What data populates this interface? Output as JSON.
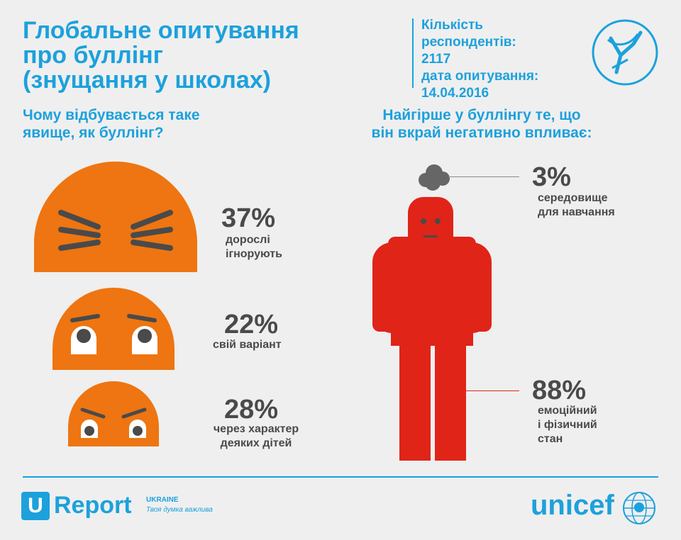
{
  "title": {
    "line1": "Глобальне опитування",
    "line2": "про буллінг",
    "line3": "(знущання у школах)"
  },
  "meta": {
    "respondents_label_1": "Кількість",
    "respondents_label_2": "респондентів:",
    "respondents_value": "2117",
    "date_label": "дата опитування:",
    "date_value": "14.04.2016"
  },
  "left_question": {
    "line1": "Чому відбувається таке",
    "line2": "явище, як буллінг?"
  },
  "right_question": {
    "line1": "Найгірше у буллінгу те, що",
    "line2": "він вкрай негативно впливає:"
  },
  "left_items": [
    {
      "percent": "37%",
      "label_1": "дорослі",
      "label_2": "ігнорують"
    },
    {
      "percent": "22%",
      "label_1": "свій варіант"
    },
    {
      "percent": "28%",
      "label_1": "через характер",
      "label_2": "деяких дітей"
    }
  ],
  "right_items": [
    {
      "percent": "3%",
      "label_1": "середовище",
      "label_2": "для навчання"
    },
    {
      "percent": "88%",
      "label_1": "емоційний",
      "label_2": "і фізичний",
      "label_3": "стан"
    }
  ],
  "footer": {
    "ureport_letter": "U",
    "ureport_word": "Report",
    "ureport_country": "UKRAINE",
    "ureport_slogan": "Твоя думка важлива",
    "unicef": "unicef"
  },
  "colors": {
    "accent": "#1ca1dc",
    "face_orange": "#ee7511",
    "figure_red": "#e02418",
    "text_dark": "#4a4a4a",
    "cloud_gray": "#666666"
  }
}
